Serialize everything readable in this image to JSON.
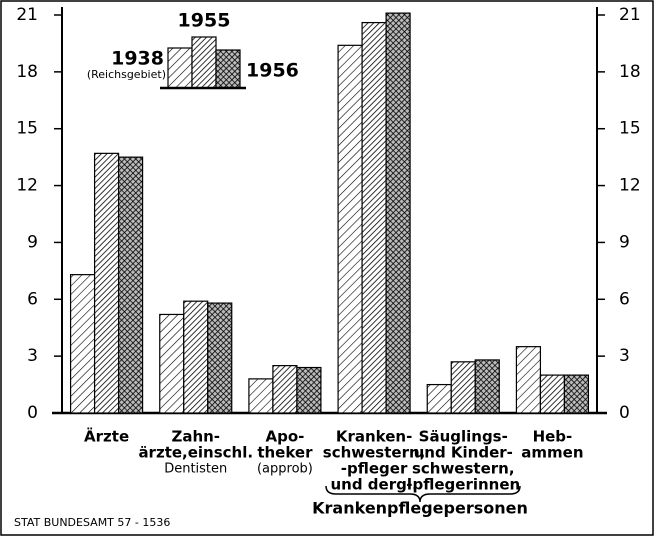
{
  "chart_data": {
    "type": "bar",
    "categories": [
      [
        "Ärzte"
      ],
      [
        "Zahn-",
        "ärzte,einschl.",
        "Dentisten"
      ],
      [
        "Apo-",
        "theker",
        "(approb)"
      ],
      [
        "Kranken-",
        "schwestern,",
        "-pfleger",
        "und dergl."
      ],
      [
        "Säuglings-",
        "und Kinder-",
        "schwestern,",
        "-pflegerinnen"
      ],
      [
        "Heb-",
        "ammen"
      ]
    ],
    "series": [
      {
        "name": "1938",
        "note": "(Reichsgebiet)",
        "color": "#000000",
        "values": [
          7.3,
          5.2,
          1.8,
          19.4,
          1.5,
          3.5
        ]
      },
      {
        "name": "1955",
        "color": "#000000",
        "values": [
          13.7,
          5.9,
          2.5,
          20.6,
          2.7,
          2.0
        ]
      },
      {
        "name": "1956",
        "color": "#000000",
        "values": [
          13.5,
          5.8,
          2.4,
          21.1,
          2.8,
          2.0
        ]
      }
    ],
    "group_label": "Krankenpflegepersonen",
    "source": "STAT BUNDESAMT 57 - 1536",
    "ylim": [
      0,
      21
    ],
    "yticks": [
      0,
      3,
      6,
      9,
      12,
      15,
      18,
      21
    ],
    "grid": false
  }
}
